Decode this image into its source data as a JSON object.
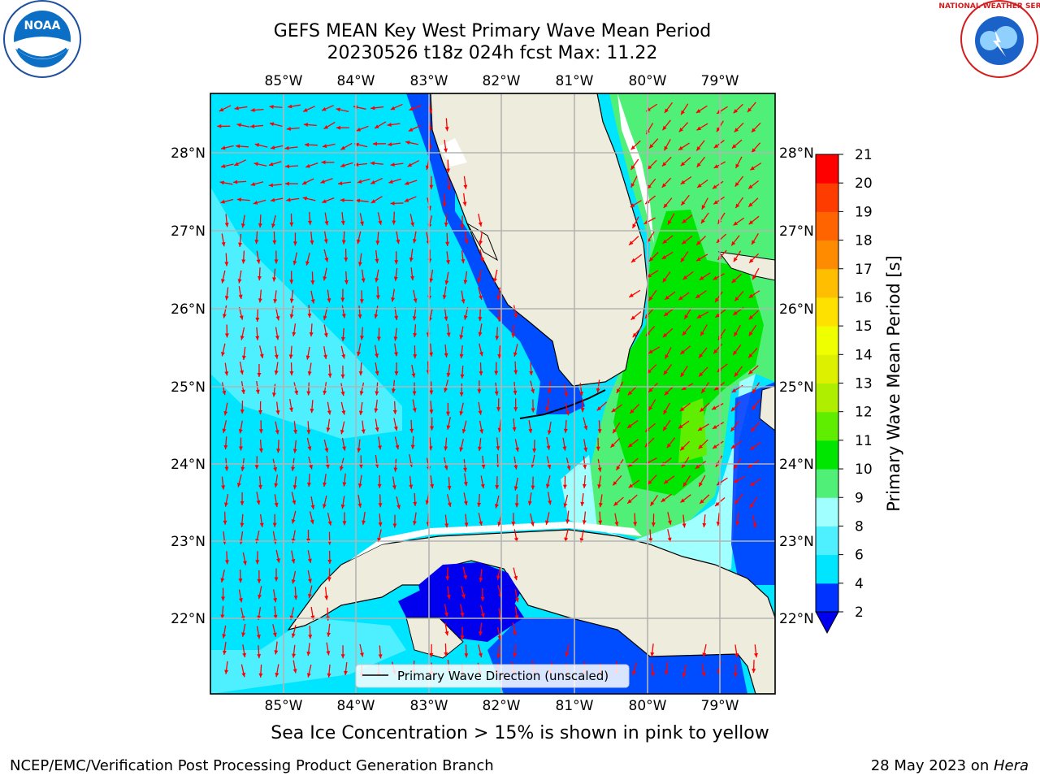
{
  "title": {
    "line1": "GEFS MEAN Key West Primary Wave Mean Period",
    "line2": "20230526 t18z 024h fcst   Max: 11.22"
  },
  "map": {
    "lon_labels": [
      "85°W",
      "84°W",
      "83°W",
      "82°W",
      "81°W",
      "80°W",
      "79°W"
    ],
    "lat_labels": [
      "28°N",
      "27°N",
      "26°N",
      "25°N",
      "24°N",
      "23°N",
      "22°N"
    ],
    "legend_label": "Primary Wave Direction (unscaled)",
    "arrow_color": "#ff0000"
  },
  "colorbar": {
    "label": "Primary Wave Mean Period [s]",
    "ticks": [
      "2",
      "4",
      "6",
      "8",
      "9",
      "10",
      "11",
      "12",
      "13",
      "14",
      "15",
      "16",
      "17",
      "18",
      "19",
      "20",
      "21"
    ],
    "colors": [
      "#0033ff",
      "#00e5ff",
      "#4ef0ff",
      "#a0ffff",
      "#50f078",
      "#00e600",
      "#60ee00",
      "#b0ee00",
      "#dcf000",
      "#f0ff00",
      "#ffe100",
      "#ffbe00",
      "#ff8c00",
      "#ff6400",
      "#ff3c00",
      "#ff0000"
    ],
    "under_color": "#0000ee"
  },
  "caption": "Sea Ice Concentration > 15% is shown in pink to yellow",
  "footer": {
    "left": "NCEP/EMC/Verification Post Processing Product Generation Branch",
    "right_prefix": "28 May 2023 on ",
    "right_host": "Hera"
  },
  "logos": {
    "noaa_text": "NOAA",
    "nws_text": "NATIONAL WEATHER SERVICE"
  }
}
